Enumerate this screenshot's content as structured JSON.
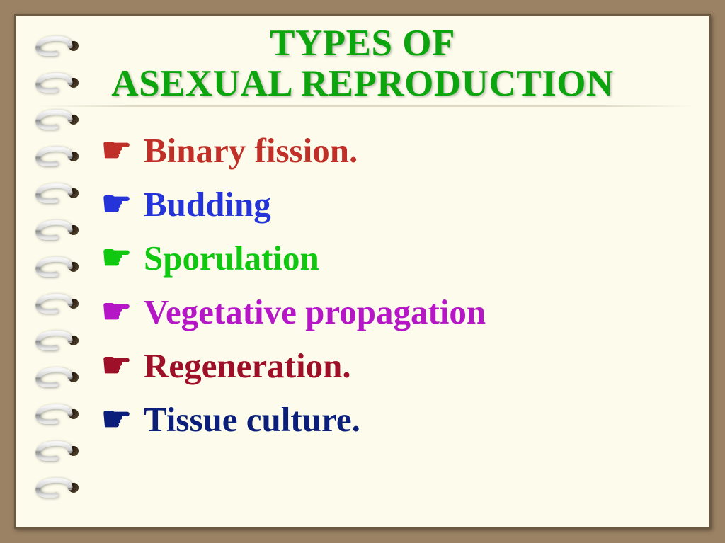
{
  "title": {
    "line1": "TYPES OF",
    "line2": "ASEXUAL REPRODUCTION",
    "color": "#0da50d",
    "font_family": "Comic Sans MS",
    "font_size_pt": 40
  },
  "bullets": [
    {
      "text": "Binary fission.",
      "color": "#c03029",
      "bullet_color": "#c03029"
    },
    {
      "text": " Budding",
      "color": "#2534d9",
      "bullet_color": "#2534d9"
    },
    {
      "text": "Sporulation",
      "color": "#11c811",
      "bullet_color": "#11c811"
    },
    {
      "text": "Vegetative propagation",
      "color": "#b516c6",
      "bullet_color": "#b516c6"
    },
    {
      "text": "Regeneration.",
      "color": "#9e0f28",
      "bullet_color": "#9e0f28"
    },
    {
      "text": "Tissue culture.",
      "color": "#0b1f7a",
      "bullet_color": "#0b1f7a"
    }
  ],
  "background": {
    "outer_color": "#9b8264",
    "page_color": "#fdfcec",
    "ring_count": 13
  },
  "list_font_size_pt": 37,
  "bullet_glyph": "☛"
}
